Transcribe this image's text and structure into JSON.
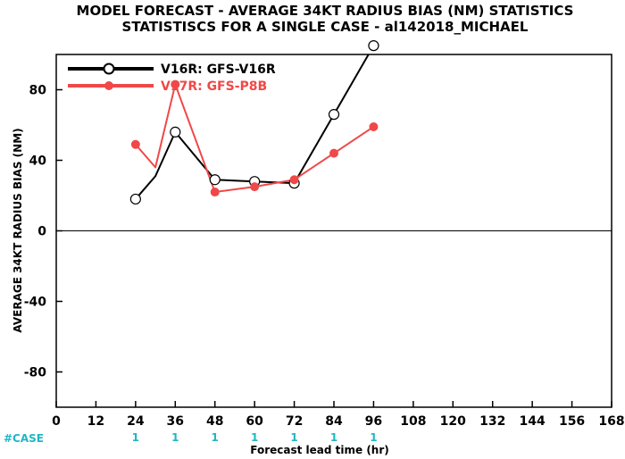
{
  "chart_data": {
    "type": "line",
    "title": "MODEL FORECAST - AVERAGE 34KT RADIUS BIAS (NM) STATISTICS",
    "subtitle": "STATISTISCS FOR A SINGLE CASE - al142018_MICHAEL",
    "xlabel": "Forecast lead time (hr)",
    "ylabel": "AVERAGE 34KT RADIUS BIAS (NM)",
    "xlim": [
      0,
      168
    ],
    "ylim": [
      -100,
      100
    ],
    "x_ticks": [
      0,
      12,
      24,
      36,
      48,
      60,
      72,
      84,
      96,
      108,
      120,
      132,
      144,
      156,
      168
    ],
    "y_ticks": [
      -80,
      -40,
      0,
      40,
      80
    ],
    "x_tick_labels": [
      "0",
      "12",
      "24",
      "36",
      "48",
      "60",
      "72",
      "84",
      "96",
      "108",
      "120",
      "132",
      "144",
      "156",
      "168"
    ],
    "y_tick_labels": [
      "-80",
      "-40",
      "0",
      "40",
      "80"
    ],
    "zero_line": true,
    "legend_position": "top-left",
    "series": [
      {
        "name": "V16R: GFS-V16R",
        "color": "#000000",
        "marker": "open-circle",
        "x": [
          24,
          30,
          36,
          48,
          60,
          72,
          84,
          96
        ],
        "y": [
          18,
          31,
          56,
          29,
          28,
          27,
          66,
          105
        ],
        "marker_x": [
          24,
          36,
          48,
          60,
          72,
          84,
          96
        ]
      },
      {
        "name": "V17R: GFS-P8B",
        "color": "#f04848",
        "marker": "filled-circle",
        "x": [
          24,
          30,
          36,
          48,
          60,
          72,
          84,
          96
        ],
        "y": [
          49,
          36,
          83,
          22,
          25,
          29,
          44,
          59
        ],
        "marker_x": [
          24,
          36,
          48,
          60,
          72,
          84,
          96
        ]
      }
    ],
    "case_counts": {
      "label": "#CASE",
      "x": [
        24,
        36,
        48,
        60,
        72,
        84,
        96
      ],
      "values": [
        "1",
        "1",
        "1",
        "1",
        "1",
        "1",
        "1"
      ]
    }
  }
}
